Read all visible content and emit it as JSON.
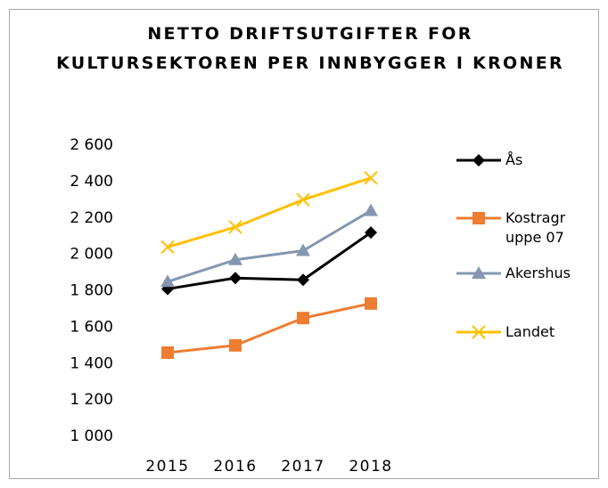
{
  "chart_data": {
    "type": "line",
    "title": "NETTO DRIFTSUTGIFTER FOR KULTURSEKTOREN PER INNBYGGER I KRONER",
    "categories": [
      "2015",
      "2016",
      "2017",
      "2018"
    ],
    "series": [
      {
        "name": "Ås",
        "color": "#000000",
        "marker": "diamond",
        "values": [
          1810,
          1870,
          1860,
          2120
        ]
      },
      {
        "name": "Kostragruppe 07",
        "color": "#ed7d31",
        "marker": "square",
        "values": [
          1460,
          1500,
          1650,
          1730
        ]
      },
      {
        "name": "Akershus",
        "color": "#8497b0",
        "marker": "triangle",
        "values": [
          1850,
          1970,
          2020,
          2240
        ]
      },
      {
        "name": "Landet",
        "color": "#ffc000",
        "marker": "x",
        "values": [
          2040,
          2150,
          2300,
          2420
        ]
      }
    ],
    "ylim": [
      1000,
      2600
    ],
    "yticks": [
      {
        "value": 1000,
        "label": "1 000"
      },
      {
        "value": 1200,
        "label": "1 200"
      },
      {
        "value": 1400,
        "label": "1 400"
      },
      {
        "value": 1600,
        "label": "1 600"
      },
      {
        "value": 1800,
        "label": "1 800"
      },
      {
        "value": 2000,
        "label": "2 000"
      },
      {
        "value": 2200,
        "label": "2 200"
      },
      {
        "value": 2400,
        "label": "2 400"
      },
      {
        "value": 2600,
        "label": "2 600"
      }
    ],
    "legend": "right"
  }
}
